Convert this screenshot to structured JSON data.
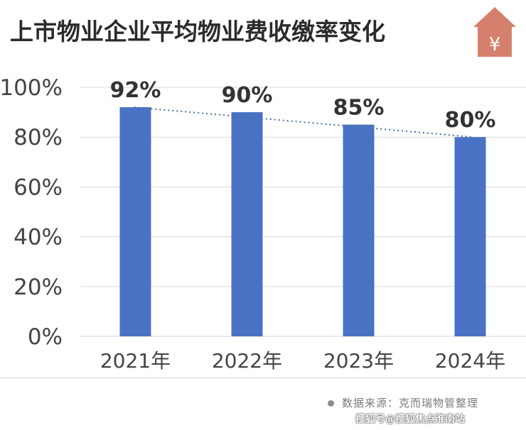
{
  "title": "上市物业企业平均物业费收缴率变化",
  "logo": {
    "icon": "house-yen-icon",
    "symbol": "¥",
    "color": "#d4806c"
  },
  "chart_data": {
    "type": "bar",
    "categories": [
      "2021年",
      "2022年",
      "2023年",
      "2024年"
    ],
    "series": [
      {
        "values": [
          92,
          90,
          85,
          80
        ]
      }
    ],
    "data_labels": [
      "92%",
      "90%",
      "85%",
      "80%"
    ],
    "y_ticks": [
      "0%",
      "20%",
      "40%",
      "60%",
      "80%",
      "100%"
    ],
    "ylim": [
      0,
      100
    ],
    "grid": true,
    "trendline": "dotted",
    "bar_color": "#4a72c4",
    "trend_color": "#4a6e9e"
  },
  "source": {
    "text": "数据来源：克而瑞物管整理"
  },
  "footer": {
    "caption": "搜狐号@搜狐焦点淮南站"
  }
}
